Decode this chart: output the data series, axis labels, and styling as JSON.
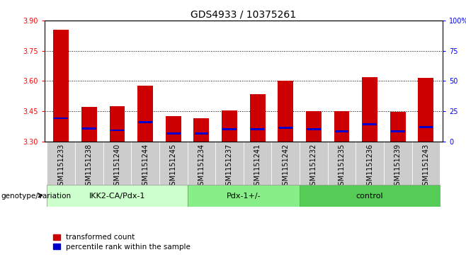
{
  "title": "GDS4933 / 10375261",
  "samples": [
    "GSM1151233",
    "GSM1151238",
    "GSM1151240",
    "GSM1151244",
    "GSM1151245",
    "GSM1151234",
    "GSM1151237",
    "GSM1151241",
    "GSM1151242",
    "GSM1151232",
    "GSM1151235",
    "GSM1151236",
    "GSM1151239",
    "GSM1151243"
  ],
  "red_values": [
    3.855,
    3.47,
    3.475,
    3.575,
    3.425,
    3.415,
    3.455,
    3.535,
    3.6,
    3.45,
    3.45,
    3.62,
    3.445,
    3.615
  ],
  "blue_positions": [
    3.415,
    3.365,
    3.355,
    3.395,
    3.34,
    3.338,
    3.36,
    3.36,
    3.368,
    3.36,
    3.35,
    3.385,
    3.35,
    3.37
  ],
  "ymin": 3.3,
  "ymax": 3.9,
  "y2min": 0,
  "y2max": 100,
  "yticks": [
    3.3,
    3.45,
    3.6,
    3.75,
    3.9
  ],
  "y2ticks": [
    0,
    25,
    50,
    75,
    100
  ],
  "grid_values": [
    3.45,
    3.6,
    3.75
  ],
  "groups": [
    {
      "label": "IKK2-CA/Pdx-1",
      "start": 0,
      "end": 5
    },
    {
      "label": "Pdx-1+/-",
      "start": 5,
      "end": 9
    },
    {
      "label": "control",
      "start": 9,
      "end": 14
    }
  ],
  "group_colors": [
    "#ccffcc",
    "#88ee88",
    "#55cc55"
  ],
  "bar_color": "#cc0000",
  "blue_color": "#0000cc",
  "bar_width": 0.55,
  "tick_bg_color": "#cccccc",
  "genotype_label": "genotype/variation",
  "legend_red": "transformed count",
  "legend_blue": "percentile rank within the sample",
  "title_fontsize": 10,
  "tick_fontsize": 7
}
